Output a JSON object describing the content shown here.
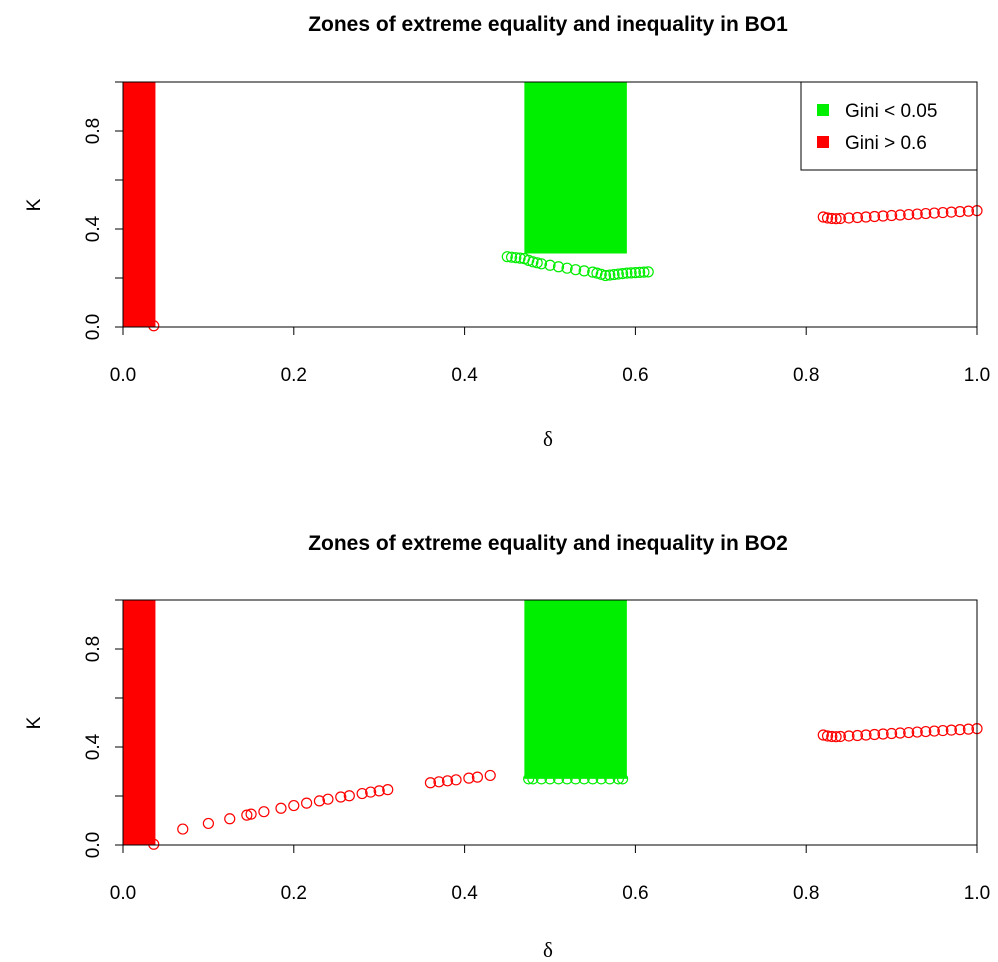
{
  "chart_data": [
    {
      "type": "scatter",
      "title": "Zones of extreme equality and inequality in BO1",
      "xlabel": "δ",
      "ylabel": "K",
      "xlim": [
        0,
        1
      ],
      "ylim": [
        0,
        1
      ],
      "x_ticks": [
        "0.0",
        "0.2",
        "0.4",
        "0.6",
        "0.8",
        "1.0"
      ],
      "x_tick_values": [
        0,
        0.2,
        0.4,
        0.6,
        0.8,
        1.0
      ],
      "y_ticks": [
        "0.0",
        "0.4",
        "0.8"
      ],
      "y_tick_values": [
        0,
        0.4,
        0.8
      ],
      "y_minor_ticks": [
        0.2,
        0.6,
        1.0
      ],
      "legend": {
        "position": "top-right",
        "entries": [
          {
            "label": "Gini < 0.05",
            "color": "#00ee00"
          },
          {
            "label": "Gini > 0.6",
            "color": "#ff0000"
          }
        ]
      },
      "regions": [
        {
          "series": "Gini > 0.6",
          "color": "#ff0000",
          "x": [
            0.0,
            0.038
          ],
          "y": [
            0.0,
            1.0
          ]
        },
        {
          "series": "Gini < 0.05",
          "color": "#00ee00",
          "x": [
            0.47,
            0.59
          ],
          "y": [
            0.3,
            1.0
          ]
        }
      ],
      "series": [
        {
          "name": "Gini < 0.05",
          "color": "#00ee00",
          "points": [
            [
              0.45,
              0.287
            ],
            [
              0.455,
              0.285
            ],
            [
              0.46,
              0.283
            ],
            [
              0.465,
              0.281
            ],
            [
              0.47,
              0.279
            ],
            [
              0.475,
              0.272
            ],
            [
              0.48,
              0.266
            ],
            [
              0.485,
              0.262
            ],
            [
              0.49,
              0.258
            ],
            [
              0.5,
              0.252
            ],
            [
              0.51,
              0.246
            ],
            [
              0.52,
              0.24
            ],
            [
              0.53,
              0.234
            ],
            [
              0.54,
              0.229
            ],
            [
              0.55,
              0.224
            ],
            [
              0.555,
              0.22
            ],
            [
              0.56,
              0.215
            ],
            [
              0.565,
              0.21
            ],
            [
              0.57,
              0.212
            ],
            [
              0.575,
              0.214
            ],
            [
              0.58,
              0.216
            ],
            [
              0.585,
              0.218
            ],
            [
              0.59,
              0.22
            ],
            [
              0.595,
              0.221
            ],
            [
              0.6,
              0.222
            ],
            [
              0.605,
              0.223
            ],
            [
              0.61,
              0.224
            ],
            [
              0.615,
              0.225
            ]
          ]
        },
        {
          "name": "Gini > 0.6",
          "color": "#ff0000",
          "points": [
            [
              0.036,
              0.005
            ],
            [
              0.82,
              0.449
            ],
            [
              0.825,
              0.445
            ],
            [
              0.83,
              0.443
            ],
            [
              0.835,
              0.442
            ],
            [
              0.84,
              0.443
            ],
            [
              0.85,
              0.445
            ],
            [
              0.86,
              0.447
            ],
            [
              0.87,
              0.449
            ],
            [
              0.88,
              0.451
            ],
            [
              0.89,
              0.453
            ],
            [
              0.9,
              0.455
            ],
            [
              0.91,
              0.457
            ],
            [
              0.92,
              0.459
            ],
            [
              0.93,
              0.461
            ],
            [
              0.94,
              0.463
            ],
            [
              0.95,
              0.465
            ],
            [
              0.96,
              0.467
            ],
            [
              0.97,
              0.469
            ],
            [
              0.98,
              0.471
            ],
            [
              0.99,
              0.473
            ],
            [
              1.0,
              0.475
            ]
          ]
        }
      ]
    },
    {
      "type": "scatter",
      "title": "Zones of extreme equality and inequality in BO2",
      "xlabel": "δ",
      "ylabel": "K",
      "xlim": [
        0,
        1
      ],
      "ylim": [
        0,
        1
      ],
      "x_ticks": [
        "0.0",
        "0.2",
        "0.4",
        "0.6",
        "0.8",
        "1.0"
      ],
      "x_tick_values": [
        0,
        0.2,
        0.4,
        0.6,
        0.8,
        1.0
      ],
      "y_ticks": [
        "0.0",
        "0.4",
        "0.8"
      ],
      "y_tick_values": [
        0,
        0.4,
        0.8
      ],
      "y_minor_ticks": [
        0.2,
        0.6,
        1.0
      ],
      "regions": [
        {
          "series": "Gini > 0.6",
          "color": "#ff0000",
          "x": [
            0.0,
            0.038
          ],
          "y": [
            0.0,
            1.0
          ]
        },
        {
          "series": "Gini < 0.05",
          "color": "#00ee00",
          "x": [
            0.47,
            0.59
          ],
          "y": [
            0.27,
            1.0
          ]
        }
      ],
      "series": [
        {
          "name": "Gini < 0.05",
          "color": "#00ee00",
          "points": [
            [
              0.475,
              0.27
            ],
            [
              0.48,
              0.27
            ],
            [
              0.49,
              0.27
            ],
            [
              0.5,
              0.27
            ],
            [
              0.51,
              0.27
            ],
            [
              0.52,
              0.27
            ],
            [
              0.53,
              0.27
            ],
            [
              0.54,
              0.27
            ],
            [
              0.55,
              0.27
            ],
            [
              0.56,
              0.27
            ],
            [
              0.57,
              0.27
            ],
            [
              0.58,
              0.27
            ],
            [
              0.585,
              0.27
            ]
          ]
        },
        {
          "name": "Gini > 0.6",
          "color": "#ff0000",
          "points": [
            [
              0.036,
              0.003
            ],
            [
              0.07,
              0.065
            ],
            [
              0.1,
              0.088
            ],
            [
              0.125,
              0.107
            ],
            [
              0.145,
              0.122
            ],
            [
              0.15,
              0.126
            ],
            [
              0.165,
              0.136
            ],
            [
              0.185,
              0.15
            ],
            [
              0.2,
              0.161
            ],
            [
              0.215,
              0.171
            ],
            [
              0.23,
              0.18
            ],
            [
              0.24,
              0.187
            ],
            [
              0.255,
              0.196
            ],
            [
              0.265,
              0.201
            ],
            [
              0.28,
              0.21
            ],
            [
              0.29,
              0.216
            ],
            [
              0.3,
              0.221
            ],
            [
              0.31,
              0.226
            ],
            [
              0.36,
              0.254
            ],
            [
              0.37,
              0.258
            ],
            [
              0.38,
              0.262
            ],
            [
              0.39,
              0.266
            ],
            [
              0.405,
              0.273
            ],
            [
              0.415,
              0.277
            ],
            [
              0.43,
              0.284
            ],
            [
              0.82,
              0.449
            ],
            [
              0.825,
              0.445
            ],
            [
              0.83,
              0.443
            ],
            [
              0.835,
              0.442
            ],
            [
              0.84,
              0.443
            ],
            [
              0.85,
              0.445
            ],
            [
              0.86,
              0.447
            ],
            [
              0.87,
              0.449
            ],
            [
              0.88,
              0.451
            ],
            [
              0.89,
              0.453
            ],
            [
              0.9,
              0.455
            ],
            [
              0.91,
              0.457
            ],
            [
              0.92,
              0.459
            ],
            [
              0.93,
              0.461
            ],
            [
              0.94,
              0.463
            ],
            [
              0.95,
              0.465
            ],
            [
              0.96,
              0.467
            ],
            [
              0.97,
              0.469
            ],
            [
              0.98,
              0.471
            ],
            [
              0.99,
              0.473
            ],
            [
              1.0,
              0.475
            ]
          ]
        }
      ]
    }
  ]
}
